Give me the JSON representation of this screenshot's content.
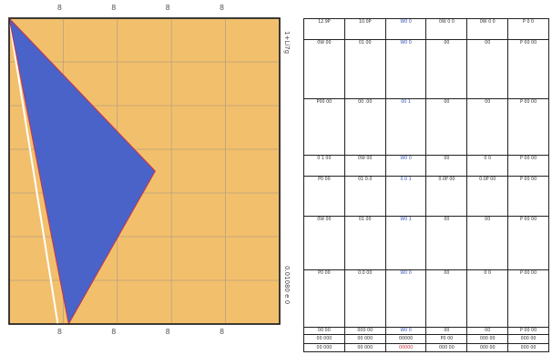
{
  "colors": {
    "plot_bg": "#f2c06c",
    "plot_grid": "#b9a27e",
    "polygon_fill": "#4a63c8",
    "polygon_edge": "#cc3344",
    "border": "#222222"
  },
  "chart_data": {
    "type": "area",
    "title": "",
    "xlabel": "",
    "ylabel": "",
    "x_ticks_top": [
      "8",
      "8",
      "8",
      "8"
    ],
    "x_ticks_bottom": [
      "8",
      "8",
      "8",
      "8"
    ],
    "x_range": [
      0,
      50
    ],
    "y_range": [
      0,
      100
    ],
    "polygon": [
      {
        "x": 0,
        "y": 100
      },
      {
        "x": 27,
        "y": 50
      },
      {
        "x": 11,
        "y": 0
      },
      {
        "x": 0,
        "y": 100
      }
    ],
    "reference_line": [
      {
        "x": 0,
        "y": 100
      },
      {
        "x": 9,
        "y": 0
      }
    ],
    "side_label_top": "1+Li7g",
    "side_label_bottom": "0.01080 e 0"
  },
  "table": {
    "rows": [
      {
        "height": 22,
        "cells": [
          "12.9P",
          "10.0P",
          "W0 0",
          "0W 0 0",
          "0W 0 0",
          "P 0 0"
        ]
      },
      {
        "height": 62,
        "cells": [
          "0W 00",
          "01 00",
          "W0 0",
          "00",
          "00",
          "P 00 00"
        ]
      },
      {
        "height": 60,
        "cells": [
          "P00 00",
          "00 .00",
          "00 1",
          "00",
          "00",
          "P 00 00"
        ]
      },
      {
        "height": 22,
        "cells": [
          "0 1 00",
          "0W 00",
          "W0 0",
          "00",
          "0 0",
          "P 00 00"
        ]
      },
      {
        "height": 42,
        "cells": [
          "P0 00",
          "01 0.0",
          "0.0 1",
          "0.0P 00",
          "0.0P 00",
          "P 00 00"
        ]
      },
      {
        "height": 57,
        "cells": [
          "0W 00",
          "01 00",
          "W0 1",
          "00",
          "00",
          "P 00 00"
        ]
      },
      {
        "height": 60,
        "cells": [
          "P0 00",
          "0.0 00",
          "W0 0",
          "00",
          "0 0",
          "P 00 00"
        ]
      },
      {
        "height": 8,
        "cells": [
          "00 00",
          "000 00",
          "W0 0",
          "00",
          "00",
          "P 00 00"
        ]
      }
    ],
    "footer": [
      [
        "00 000",
        "00 000",
        "00000",
        "P0 00",
        "000 00",
        "000 00"
      ],
      [
        "00 000",
        "00 000",
        "00000",
        "000 00",
        "000 00",
        "000 00"
      ]
    ]
  }
}
